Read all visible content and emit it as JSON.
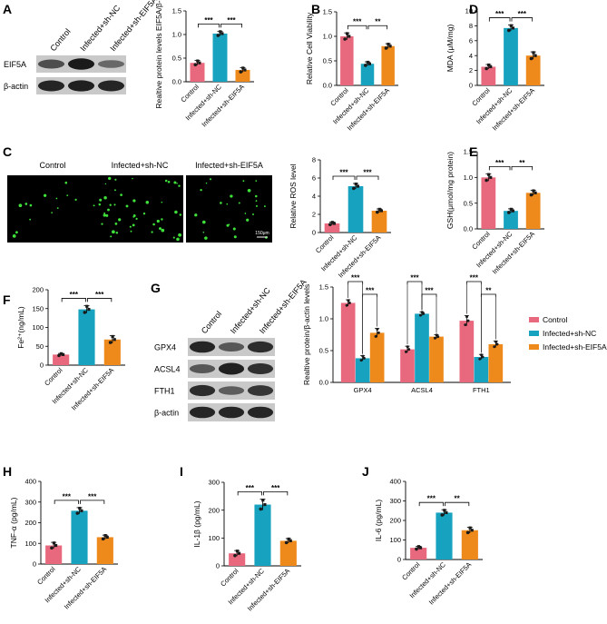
{
  "colors": {
    "control": "#e8697e",
    "nc": "#17a3bf",
    "eif5a": "#ee8a1b"
  },
  "conditions": [
    "Control",
    "Infected+sh-NC",
    "Infected+sh-EIF5A"
  ],
  "panels": {
    "A": "A",
    "B": "B",
    "C": "C",
    "D": "D",
    "E": "E",
    "F": "F",
    "G": "G",
    "H": "H",
    "I": "I",
    "J": "J"
  },
  "blots": {
    "A": {
      "lanes": [
        "Control",
        "Infected+sh-NC",
        "Infected+sh-EIF5A"
      ],
      "rows": [
        "EIF5A",
        "β-actin"
      ]
    },
    "G": {
      "lanes": [
        "Control",
        "Infected+sh-NC",
        "Infected+sh-EIF5A"
      ],
      "rows": [
        "GPX4",
        "ACSL4",
        "FTH1",
        "β-actin"
      ]
    }
  },
  "fluorescence": {
    "labels": [
      "Control",
      "Infected+sh-NC",
      "Infected+sh-EIF5A"
    ],
    "scalebar": "150μm"
  },
  "legend": [
    "Control",
    "Infected+sh-NC",
    "Infected+sh-EIF5A"
  ],
  "chart_data": [
    {
      "id": "A",
      "type": "bar",
      "ylabel": "Realtive protein levels EIF5A/β-actin",
      "ylim": [
        0,
        1.5
      ],
      "ticks": [
        0.0,
        0.5,
        1.0,
        1.5
      ],
      "categories": [
        "Control",
        "Infected+sh-NC",
        "Infected+sh-EIF5A"
      ],
      "values": [
        0.4,
        1.02,
        0.25
      ],
      "errors": [
        0.05,
        0.05,
        0.05
      ],
      "sig": [
        {
          "from": 0,
          "to": 1,
          "label": "***"
        },
        {
          "from": 1,
          "to": 2,
          "label": "***"
        }
      ]
    },
    {
      "id": "B",
      "type": "bar",
      "ylabel": "Relative Cell Viability",
      "ylim": [
        0,
        1.5
      ],
      "ticks": [
        0.0,
        0.5,
        1.0,
        1.5
      ],
      "categories": [
        "Control",
        "Infected+sh-NC",
        "Infected+sh-EIF5A"
      ],
      "values": [
        1.0,
        0.44,
        0.8
      ],
      "errors": [
        0.07,
        0.04,
        0.05
      ],
      "sig": [
        {
          "from": 0,
          "to": 1,
          "label": "***"
        },
        {
          "from": 1,
          "to": 2,
          "label": "**"
        }
      ]
    },
    {
      "id": "D",
      "type": "bar",
      "ylabel": "MDA (μM/mg)",
      "ylim": [
        0,
        10
      ],
      "ticks": [
        0,
        2,
        4,
        6,
        8,
        10
      ],
      "categories": [
        "Control",
        "Infected+sh-NC",
        "Infected+sh-EIF5A"
      ],
      "values": [
        2.5,
        7.7,
        4.0
      ],
      "errors": [
        0.3,
        0.4,
        0.5
      ],
      "sig": [
        {
          "from": 0,
          "to": 1,
          "label": "***"
        },
        {
          "from": 1,
          "to": 2,
          "label": "***"
        }
      ]
    },
    {
      "id": "C",
      "type": "bar",
      "ylabel": "Relative ROS level",
      "ylim": [
        0,
        8
      ],
      "ticks": [
        0,
        2,
        4,
        6,
        8
      ],
      "categories": [
        "Control",
        "Infected+sh-NC",
        "Infected+sh-EIF5A"
      ],
      "values": [
        1.0,
        5.1,
        2.4
      ],
      "errors": [
        0.15,
        0.3,
        0.2
      ],
      "sig": [
        {
          "from": 0,
          "to": 1,
          "label": "***"
        },
        {
          "from": 1,
          "to": 2,
          "label": "***"
        }
      ]
    },
    {
      "id": "E",
      "type": "bar",
      "ylabel": "GSH(μmol/mg protein)",
      "ylim": [
        0,
        1.5
      ],
      "ticks": [
        0.0,
        0.5,
        1.0,
        1.5
      ],
      "categories": [
        "Control",
        "Infected+sh-NC",
        "Infected+sh-EIF5A"
      ],
      "values": [
        1.0,
        0.35,
        0.7
      ],
      "errors": [
        0.07,
        0.04,
        0.05
      ],
      "sig": [
        {
          "from": 0,
          "to": 1,
          "label": "***"
        },
        {
          "from": 1,
          "to": 2,
          "label": "**"
        }
      ]
    },
    {
      "id": "F",
      "type": "bar",
      "ylabel": "Fe²⁺(ng/mL)",
      "ylim": [
        0,
        200
      ],
      "ticks": [
        0,
        50,
        100,
        150,
        200
      ],
      "categories": [
        "Control",
        "Infected+sh-NC",
        "Infected+sh-EIF5A"
      ],
      "values": [
        28,
        148,
        68
      ],
      "errors": [
        3,
        10,
        10
      ],
      "sig": [
        {
          "from": 0,
          "to": 1,
          "label": "***"
        },
        {
          "from": 1,
          "to": 2,
          "label": "***"
        }
      ]
    },
    {
      "id": "G",
      "type": "bar",
      "ylabel": "Realtive protein/β-actin levels",
      "ylim": [
        0,
        1.5
      ],
      "ticks": [
        0.0,
        0.5,
        1.0,
        1.5
      ],
      "categories": [
        "GPX4",
        "ACSL4",
        "FTH1"
      ],
      "series": [
        {
          "name": "Control",
          "values": [
            1.25,
            0.52,
            0.97
          ],
          "errors": [
            0.05,
            0.05,
            0.08
          ]
        },
        {
          "name": "Infected+sh-NC",
          "values": [
            0.38,
            1.08,
            0.4
          ],
          "errors": [
            0.04,
            0.03,
            0.04
          ]
        },
        {
          "name": "Infected+sh-EIF5A",
          "values": [
            0.78,
            0.72,
            0.6
          ],
          "errors": [
            0.07,
            0.03,
            0.05
          ]
        }
      ],
      "sig": [
        {
          "group": 0,
          "from": 0,
          "to": 1,
          "label": "***"
        },
        {
          "group": 0,
          "from": 1,
          "to": 2,
          "label": "***"
        },
        {
          "group": 1,
          "from": 0,
          "to": 1,
          "label": "***"
        },
        {
          "group": 1,
          "from": 1,
          "to": 2,
          "label": "***"
        },
        {
          "group": 2,
          "from": 0,
          "to": 1,
          "label": "***"
        },
        {
          "group": 2,
          "from": 1,
          "to": 2,
          "label": "**"
        }
      ]
    },
    {
      "id": "H",
      "type": "bar",
      "ylabel": "TNF-α (pg/mL)",
      "ylim": [
        0,
        400
      ],
      "ticks": [
        0,
        100,
        200,
        300,
        400
      ],
      "categories": [
        "Control",
        "Infected+sh-NC",
        "Infected+sh-EIF5A"
      ],
      "values": [
        90,
        258,
        130
      ],
      "errors": [
        15,
        15,
        10
      ],
      "sig": [
        {
          "from": 0,
          "to": 1,
          "label": "***"
        },
        {
          "from": 1,
          "to": 2,
          "label": "***"
        }
      ]
    },
    {
      "id": "I",
      "type": "bar",
      "ylabel": "IL-1β (pg/mL)",
      "ylim": [
        0,
        300
      ],
      "ticks": [
        0,
        100,
        200,
        300
      ],
      "categories": [
        "Control",
        "Infected+sh-NC",
        "Infected+sh-EIF5A"
      ],
      "values": [
        45,
        220,
        90
      ],
      "errors": [
        10,
        20,
        8
      ],
      "sig": [
        {
          "from": 0,
          "to": 1,
          "label": "***"
        },
        {
          "from": 1,
          "to": 2,
          "label": "***"
        }
      ]
    },
    {
      "id": "J",
      "type": "bar",
      "ylabel": "IL-6 (pg/mL)",
      "ylim": [
        0,
        400
      ],
      "ticks": [
        0,
        100,
        200,
        300,
        400
      ],
      "categories": [
        "Control",
        "Infected+sh-NC",
        "Infected+sh-EIF5A"
      ],
      "values": [
        60,
        240,
        150
      ],
      "errors": [
        8,
        15,
        15
      ],
      "sig": [
        {
          "from": 0,
          "to": 1,
          "label": "***"
        },
        {
          "from": 1,
          "to": 2,
          "label": "**"
        }
      ]
    }
  ]
}
